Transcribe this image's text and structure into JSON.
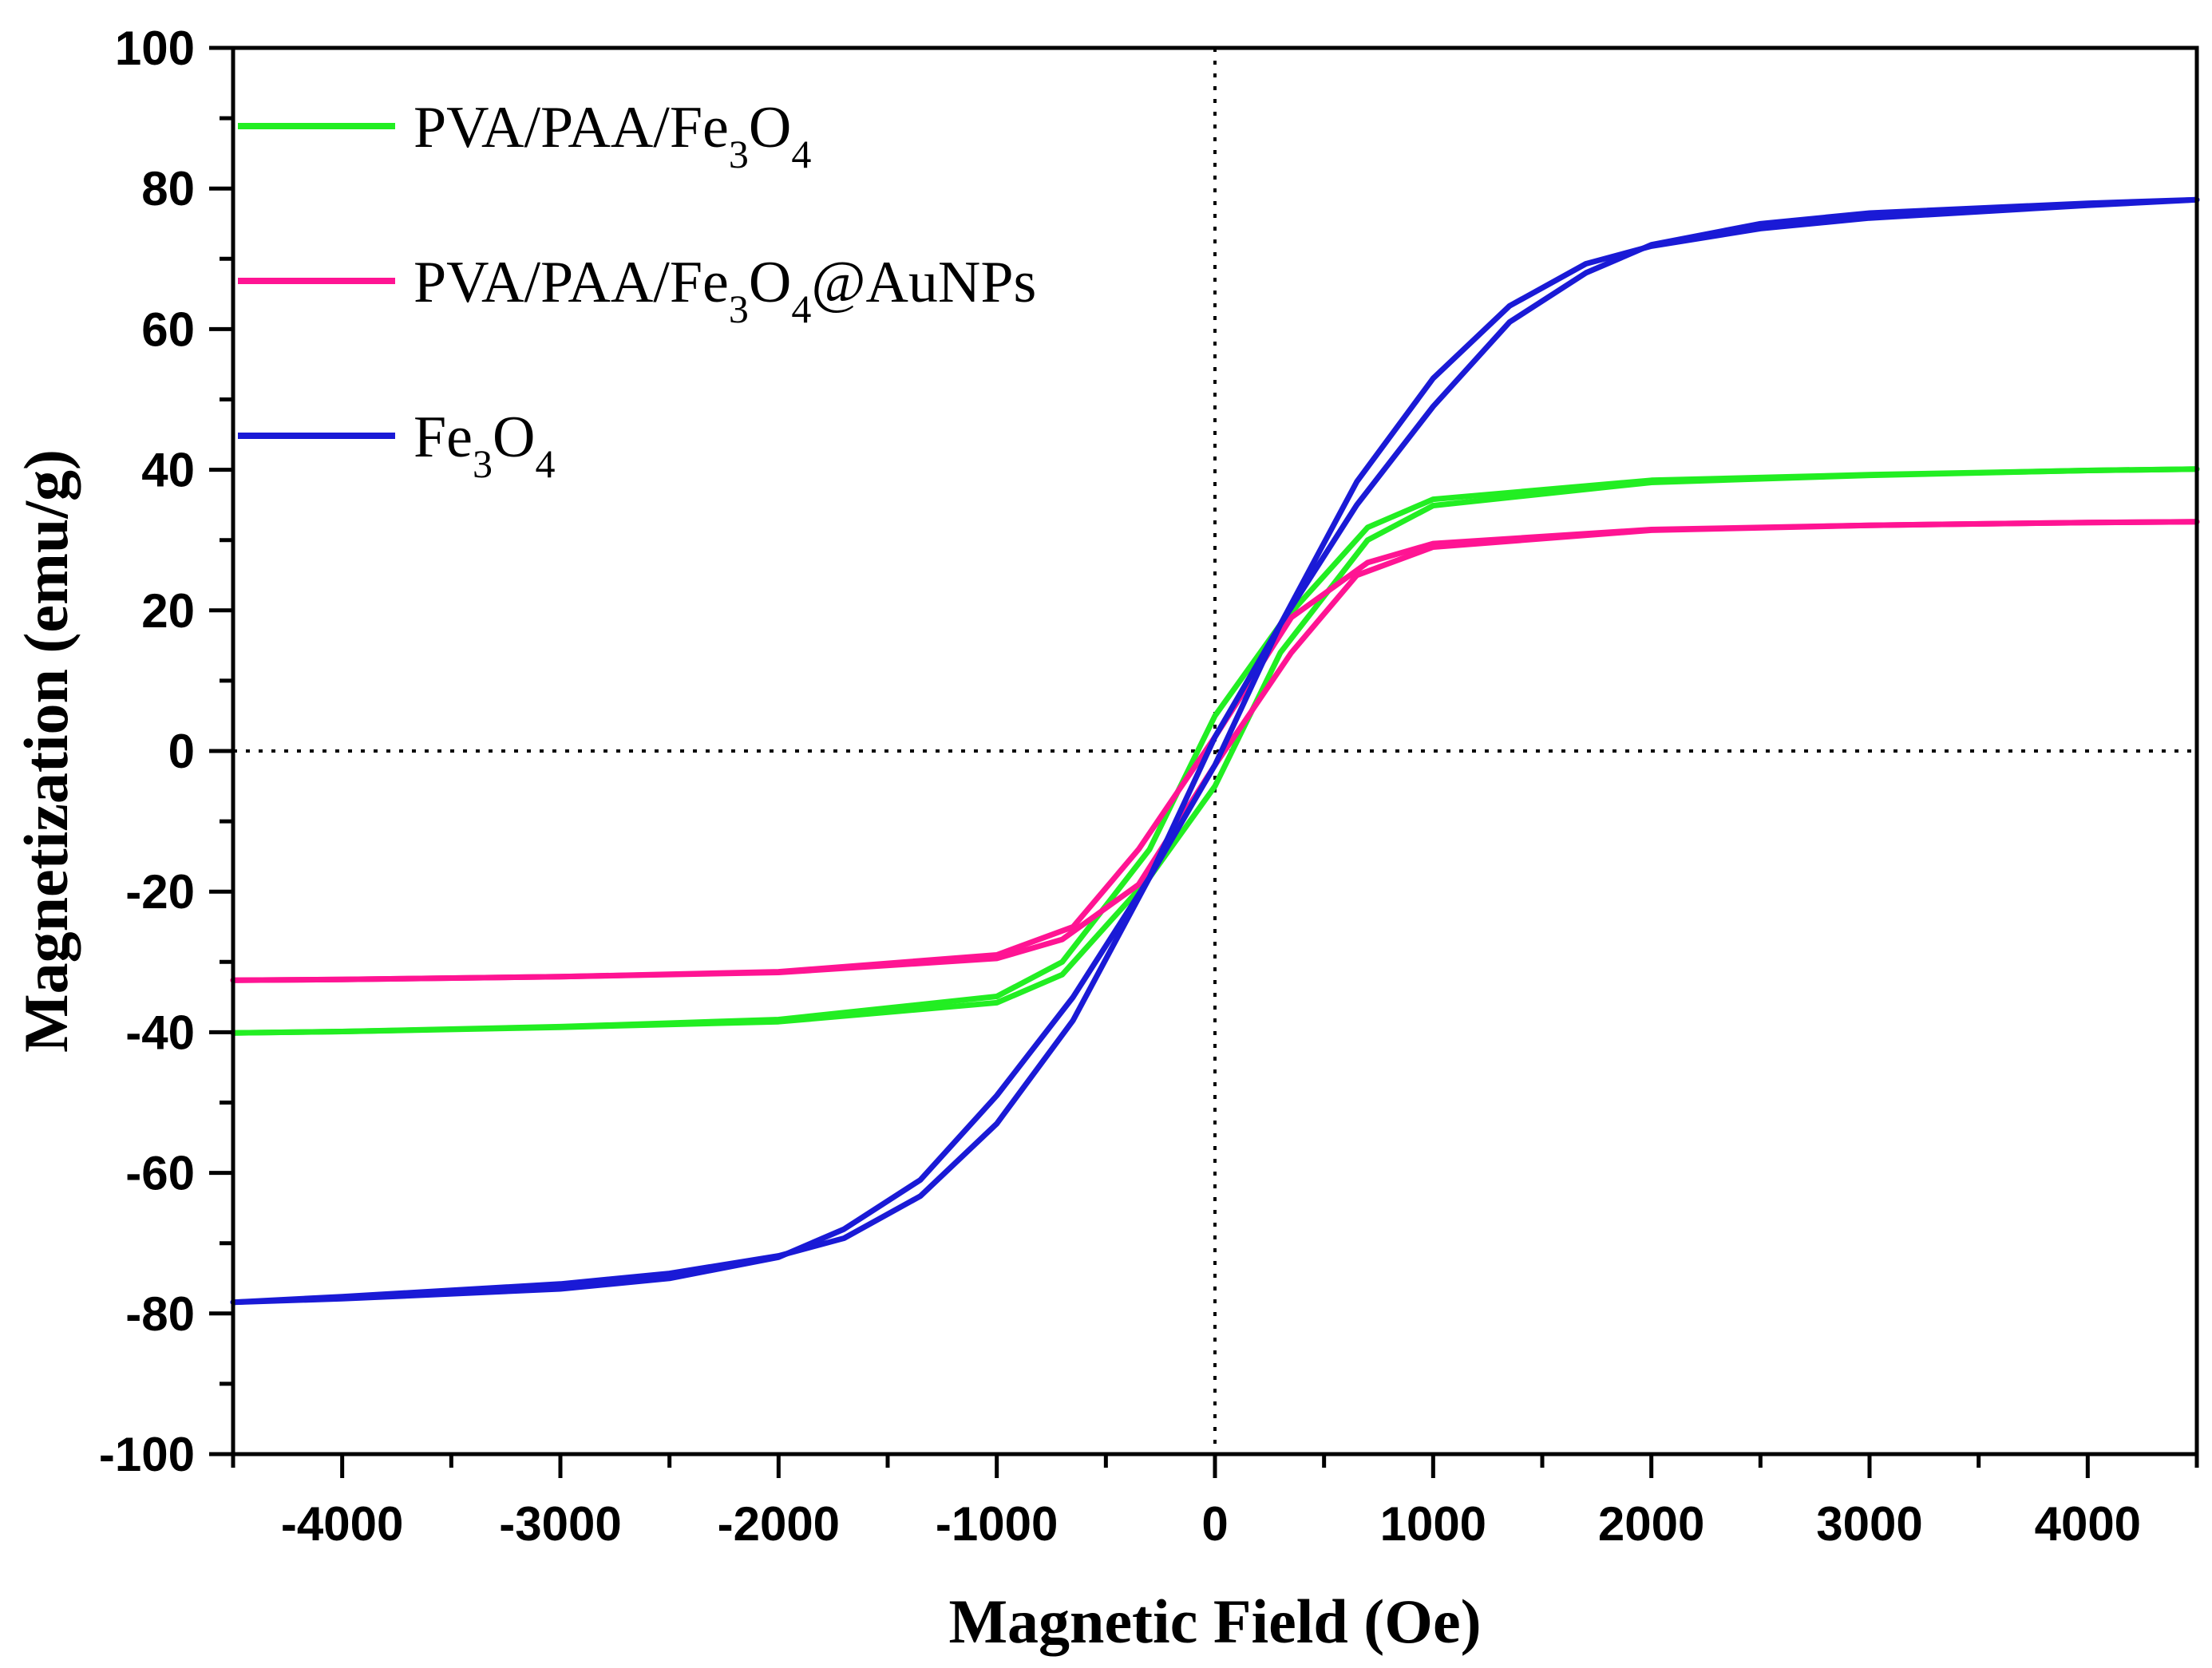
{
  "chart_data": {
    "type": "line",
    "title": "",
    "xlabel": "Magnetic Field (Oe)",
    "ylabel": "Magnetization (emu/g)",
    "xlim": [
      -4500,
      4500
    ],
    "ylim": [
      -100,
      100
    ],
    "xticks": [
      -4000,
      -3000,
      -2000,
      -1000,
      0,
      1000,
      2000,
      3000,
      4000
    ],
    "yticks": [
      -100,
      -80,
      -60,
      -40,
      -20,
      0,
      20,
      40,
      60,
      80,
      100
    ],
    "xtick_labels": [
      "-4000",
      "-3000",
      "-2000",
      "-1000",
      "0",
      "1000",
      "2000",
      "3000",
      "4000"
    ],
    "ytick_labels": [
      "-100",
      "-80",
      "-60",
      "-40",
      "-20",
      "0",
      "20",
      "40",
      "60",
      "80",
      "100"
    ],
    "reference_lines": {
      "x": 0,
      "y": 0,
      "style": "dotted"
    },
    "legend_position": "top-left",
    "series": [
      {
        "name": "PVA/PAA/Fe3O4",
        "legend": {
          "p1": "PVA/PAA/Fe",
          "s1": "3",
          "p2": "O",
          "s2": "4",
          "p3": ""
        },
        "color": "#22ee22",
        "branch_down": {
          "x": [
            4500,
            4000,
            3000,
            2000,
            1000,
            700,
            300,
            0,
            -300,
            -700,
            -1000,
            -2000,
            -3000,
            -4000,
            -4500
          ],
          "y": [
            40.1,
            39.9,
            39.3,
            38.5,
            35.8,
            31.8,
            18,
            5,
            -14,
            -30,
            -34.9,
            -38.2,
            -39.2,
            -39.9,
            -40.1
          ]
        },
        "branch_up": {
          "x": [
            -4500,
            -4000,
            -3000,
            -2000,
            -1000,
            -700,
            -300,
            0,
            300,
            700,
            1000,
            2000,
            3000,
            4000,
            4500
          ],
          "y": [
            -40.1,
            -39.9,
            -39.3,
            -38.5,
            -35.8,
            -31.8,
            -18,
            -5,
            14,
            30,
            34.9,
            38.2,
            39.2,
            39.9,
            40.1
          ]
        }
      },
      {
        "name": "PVA/PAA/Fe3O4@AuNPs",
        "legend": {
          "p1": "PVA/PAA/Fe",
          "s1": "3",
          "p2": "O",
          "s2": "4",
          "p3": "@AuNPs"
        },
        "color": "#ff1493",
        "branch_down": {
          "x": [
            4500,
            4000,
            3000,
            2000,
            1000,
            700,
            350,
            0,
            -350,
            -650,
            -1000,
            -2000,
            -3000,
            -4000,
            -4500
          ],
          "y": [
            32.6,
            32.5,
            32.1,
            31.5,
            29.5,
            26.8,
            19,
            2,
            -14,
            -25,
            -29,
            -31.4,
            -32.1,
            -32.5,
            -32.6
          ]
        },
        "branch_up": {
          "x": [
            -4500,
            -4000,
            -3000,
            -2000,
            -1000,
            -700,
            -350,
            0,
            350,
            650,
            1000,
            2000,
            3000,
            4000,
            4500
          ],
          "y": [
            -32.6,
            -32.5,
            -32.1,
            -31.5,
            -29.5,
            -26.8,
            -19,
            -2,
            14,
            25,
            29,
            31.4,
            32.1,
            32.5,
            32.6
          ]
        }
      },
      {
        "name": "Fe3O4",
        "legend": {
          "p1": "Fe",
          "s1": "3",
          "p2": "O",
          "s2": "4",
          "p3": ""
        },
        "color": "#1a1ad6",
        "branch_down": {
          "x": [
            4500,
            4000,
            3000,
            2500,
            2000,
            1700,
            1350,
            1000,
            650,
            300,
            0,
            -300,
            -650,
            -1000,
            -1350,
            -1700,
            -2000,
            -2500,
            -3000,
            -4000,
            -4500
          ],
          "y": [
            78.4,
            77.6,
            75.8,
            74.3,
            71.8,
            69.3,
            63.3,
            53,
            38.3,
            18,
            2,
            -18,
            -35,
            -49,
            -61,
            -68,
            -72,
            -75,
            -76.5,
            -77.9,
            -78.4
          ]
        },
        "branch_up": {
          "x": [
            -4500,
            -4000,
            -3000,
            -2500,
            -2000,
            -1700,
            -1350,
            -1000,
            -650,
            -300,
            0,
            300,
            650,
            1000,
            1350,
            1700,
            2000,
            2500,
            3000,
            4000,
            4500
          ],
          "y": [
            -78.4,
            -77.6,
            -75.8,
            -74.3,
            -71.8,
            -69.3,
            -63.3,
            -53,
            -38.3,
            -18,
            -2,
            18,
            35,
            49,
            61,
            68,
            72,
            75,
            76.5,
            77.9,
            78.4
          ]
        }
      }
    ]
  }
}
